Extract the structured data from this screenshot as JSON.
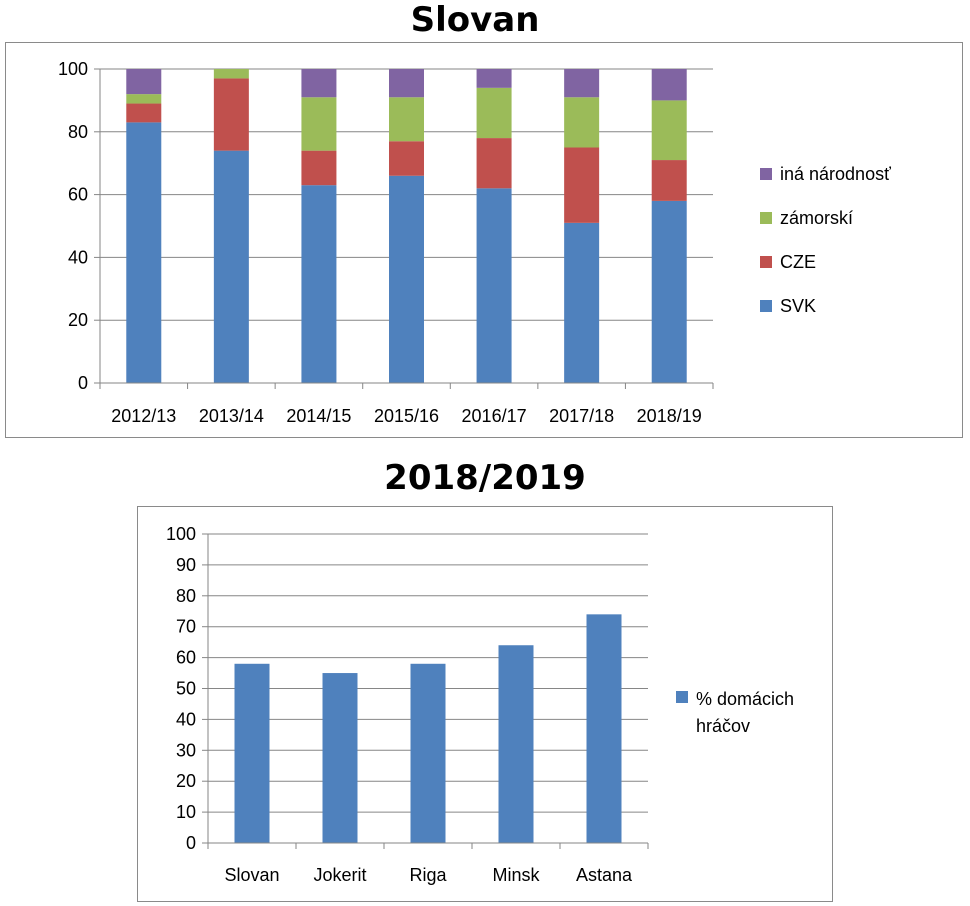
{
  "chart_data": [
    {
      "type": "bar",
      "stacked": true,
      "title": "Slovan",
      "categories": [
        "2012/13",
        "2013/14",
        "2014/15",
        "2015/16",
        "2016/17",
        "2017/18",
        "2018/19"
      ],
      "series": [
        {
          "name": "SVK",
          "color": "#4f81bd",
          "values": [
            83,
            74,
            63,
            66,
            62,
            51,
            58
          ]
        },
        {
          "name": "CZE",
          "color": "#c0504d",
          "values": [
            6,
            23,
            11,
            11,
            16,
            24,
            13
          ]
        },
        {
          "name": "zámorskí",
          "color": "#9bbb59",
          "values": [
            3,
            3,
            17,
            14,
            16,
            16,
            19
          ]
        },
        {
          "name": "iná národnosť",
          "color": "#8064a2",
          "values": [
            8,
            0,
            9,
            9,
            6,
            9,
            10
          ]
        }
      ],
      "ylim": [
        0,
        100
      ],
      "yticks": [
        0,
        20,
        40,
        60,
        80,
        100
      ],
      "grid": true,
      "legend": "right"
    },
    {
      "type": "bar",
      "title": "2018/2019",
      "categories": [
        "Slovan",
        "Jokerit",
        "Riga",
        "Minsk",
        "Astana"
      ],
      "series": [
        {
          "name": "% domácich hráčov",
          "color": "#4f81bd",
          "values": [
            58,
            55,
            58,
            64,
            74
          ]
        }
      ],
      "ylim": [
        0,
        100
      ],
      "yticks": [
        0,
        10,
        20,
        30,
        40,
        50,
        60,
        70,
        80,
        90,
        100
      ],
      "grid": true,
      "legend": "right"
    }
  ]
}
